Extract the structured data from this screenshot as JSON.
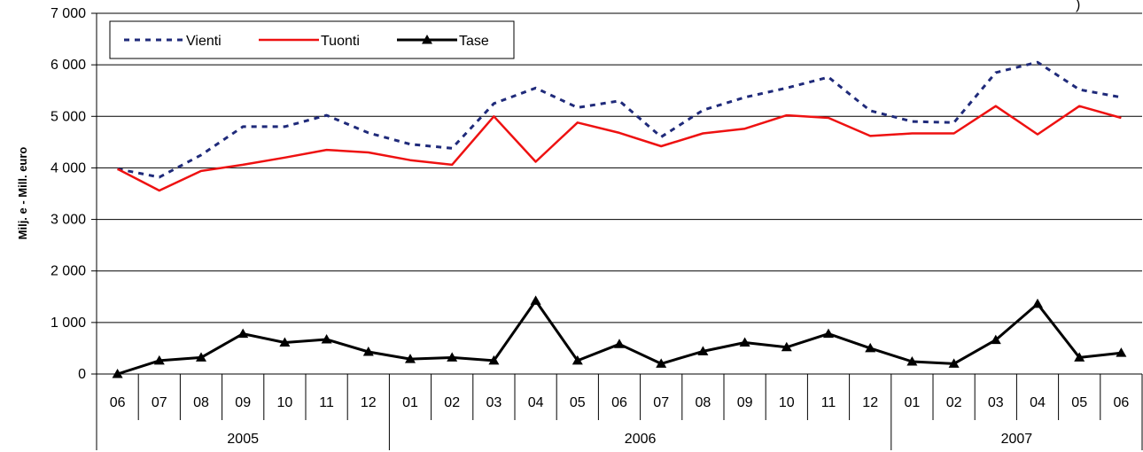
{
  "chart_data": {
    "type": "line",
    "ylabel": "Milj. e - Mill. euro",
    "ylim": [
      0,
      7000
    ],
    "yticks": [
      "0",
      "1 000",
      "2 000",
      "3 000",
      "4 000",
      "5 000",
      "6 000",
      "7 000"
    ],
    "ytick_values": [
      0,
      1000,
      2000,
      3000,
      4000,
      5000,
      6000,
      7000
    ],
    "grid": "horizontal",
    "legend_position": "top-left",
    "categories": [
      "06",
      "07",
      "08",
      "09",
      "10",
      "11",
      "12",
      "01",
      "02",
      "03",
      "04",
      "05",
      "06",
      "07",
      "08",
      "09",
      "10",
      "11",
      "12",
      "01",
      "02",
      "03",
      "04",
      "05",
      "06"
    ],
    "years": [
      {
        "label": "2005",
        "count": 7
      },
      {
        "label": "2006",
        "count": 12
      },
      {
        "label": "2007",
        "count": 6
      }
    ],
    "series": [
      {
        "name": "Vienti",
        "color": "#1f2a7a",
        "style": "dashed",
        "values": [
          3980,
          3820,
          4250,
          4800,
          4800,
          5020,
          4680,
          4460,
          4380,
          5250,
          5550,
          5170,
          5300,
          4600,
          5120,
          5370,
          5550,
          5760,
          5110,
          4900,
          4880,
          5850,
          6050,
          5520,
          5370
        ]
      },
      {
        "name": "Tuonti",
        "color": "#ee1111",
        "style": "solid",
        "values": [
          3980,
          3560,
          3940,
          4060,
          4200,
          4350,
          4300,
          4150,
          4060,
          5000,
          4120,
          4880,
          4680,
          4420,
          4670,
          4760,
          5020,
          4970,
          4620,
          4670,
          4670,
          5200,
          4650,
          5200,
          4970
        ]
      },
      {
        "name": "Tase",
        "color": "#000000",
        "style": "solid-triangle",
        "values": [
          0,
          260,
          320,
          780,
          610,
          670,
          430,
          290,
          320,
          260,
          1420,
          260,
          580,
          200,
          440,
          610,
          520,
          780,
          500,
          240,
          200,
          660,
          1360,
          320,
          410
        ]
      }
    ],
    "top_right_fragment": ")"
  }
}
